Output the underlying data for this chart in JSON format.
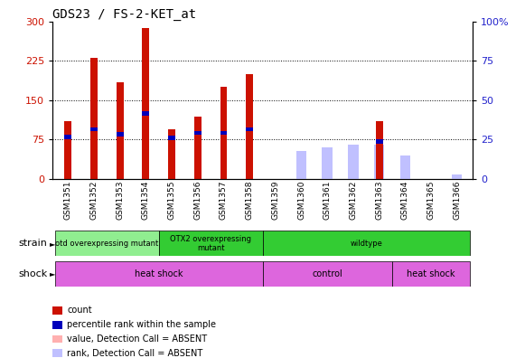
{
  "title": "GDS23 / FS-2-KET_at",
  "samples": [
    "GSM1351",
    "GSM1352",
    "GSM1353",
    "GSM1354",
    "GSM1355",
    "GSM1356",
    "GSM1357",
    "GSM1358",
    "GSM1359",
    "GSM1360",
    "GSM1361",
    "GSM1362",
    "GSM1363",
    "GSM1364",
    "GSM1365",
    "GSM1366"
  ],
  "count_values": [
    110,
    230,
    185,
    287,
    95,
    118,
    175,
    200,
    0,
    0,
    0,
    0,
    110,
    0,
    0,
    0
  ],
  "rank_values": [
    80,
    95,
    85,
    125,
    78,
    88,
    88,
    95,
    0,
    0,
    0,
    0,
    72,
    0,
    0,
    0
  ],
  "absent_count": [
    0,
    0,
    0,
    0,
    0,
    0,
    0,
    0,
    0,
    48,
    60,
    60,
    0,
    40,
    0,
    0
  ],
  "absent_rank": [
    0,
    0,
    0,
    0,
    0,
    0,
    0,
    0,
    0,
    18,
    20,
    22,
    22,
    15,
    0,
    3
  ],
  "ylim_left": [
    0,
    300
  ],
  "ylim_right": [
    0,
    100
  ],
  "yticks_left": [
    0,
    75,
    150,
    225,
    300
  ],
  "yticks_right": [
    0,
    25,
    50,
    75,
    100
  ],
  "count_color": "#CC1100",
  "rank_color": "#0000BB",
  "absent_count_color": "#FFB0B0",
  "absent_rank_color": "#C0C0FF",
  "left_label_color": "#CC1100",
  "right_label_color": "#2222CC",
  "strain_starts": [
    0,
    4,
    8
  ],
  "strain_ends": [
    4,
    8,
    16
  ],
  "strain_labels": [
    "otd overexpressing mutant",
    "OTX2 overexpressing\nmutant",
    "wildtype"
  ],
  "strain_colors": [
    "#90EE90",
    "#33CC33",
    "#33CC33"
  ],
  "shock_starts": [
    0,
    8,
    13
  ],
  "shock_ends": [
    8,
    13,
    16
  ],
  "shock_labels": [
    "heat shock",
    "control",
    "heat shock"
  ],
  "shock_color": "#DD66DD",
  "legend_items": [
    {
      "color": "#CC1100",
      "label": "count"
    },
    {
      "color": "#0000BB",
      "label": "percentile rank within the sample"
    },
    {
      "color": "#FFB0B0",
      "label": "value, Detection Call = ABSENT"
    },
    {
      "color": "#C0C0FF",
      "label": "rank, Detection Call = ABSENT"
    }
  ]
}
